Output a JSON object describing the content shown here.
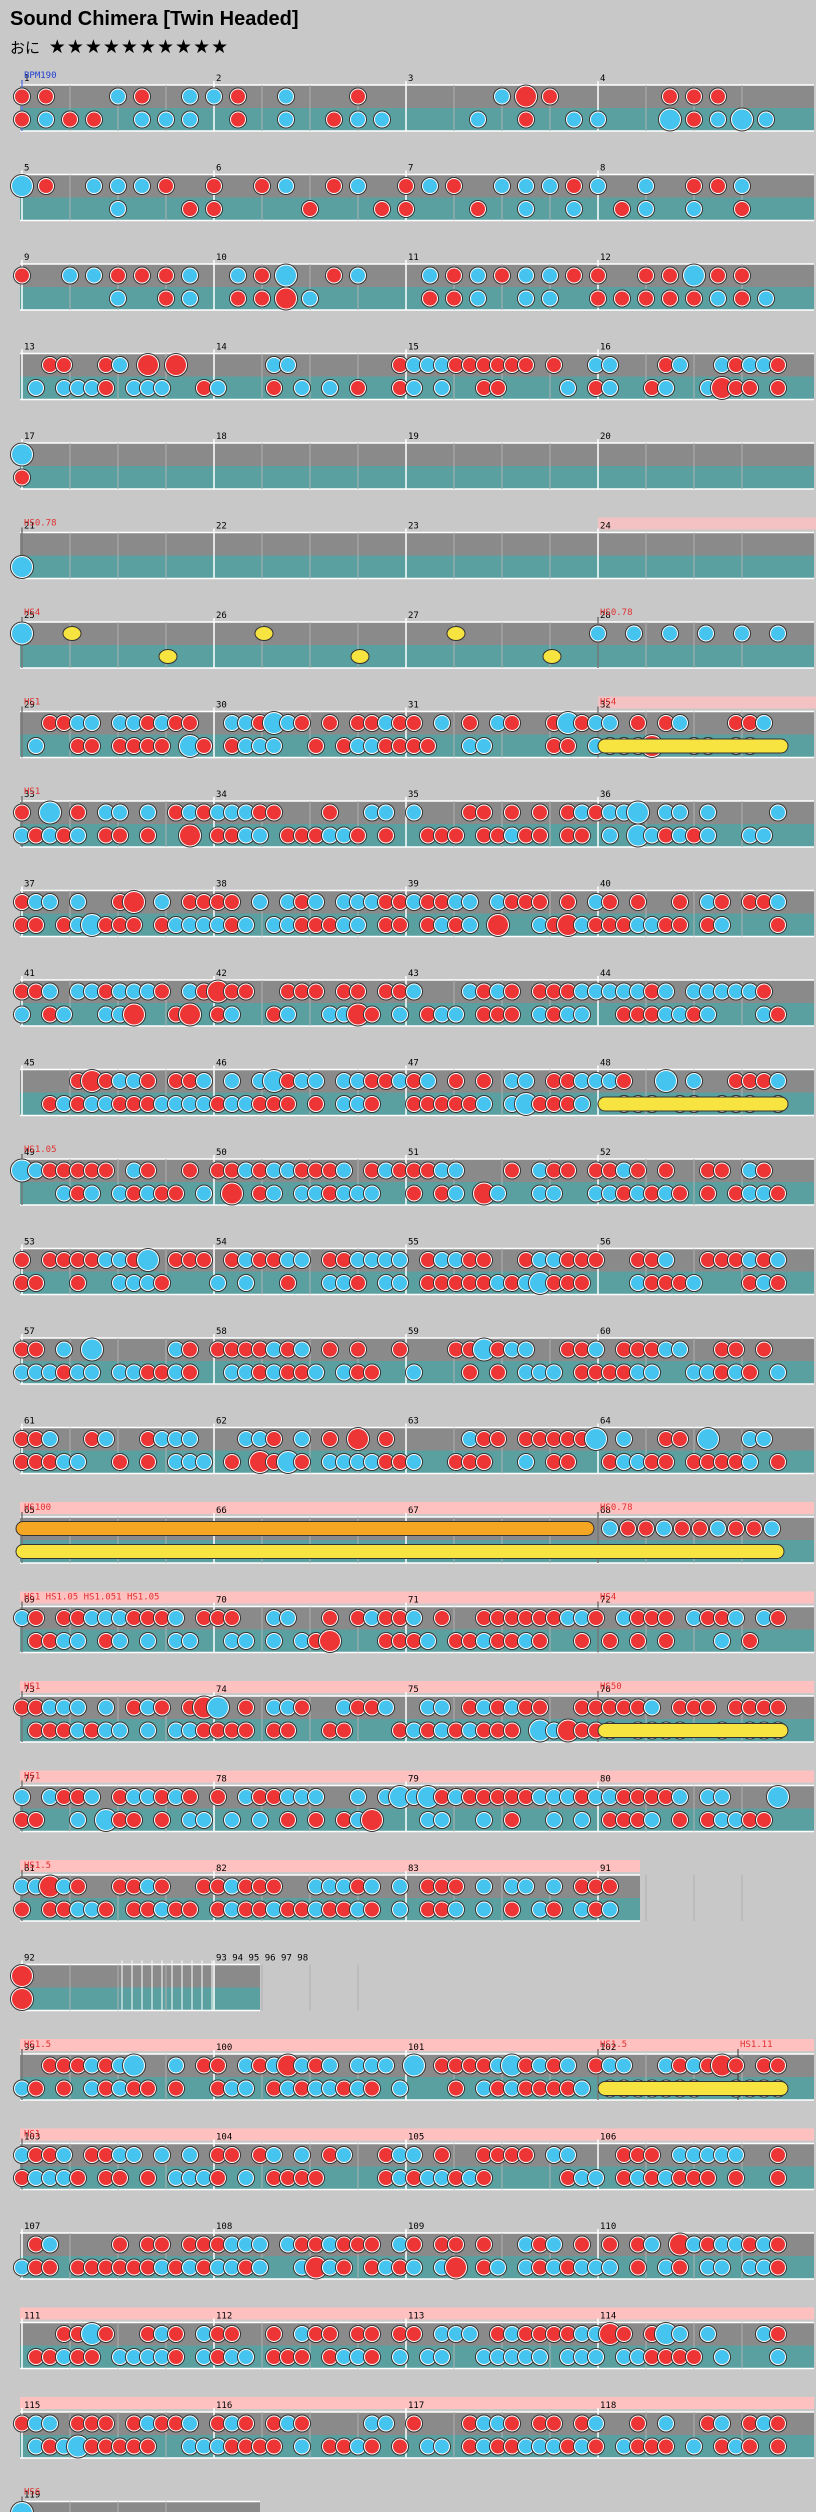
{
  "song": {
    "title": "Sound Chimera [Twin Headed]",
    "course": "おに",
    "stars": "★★★★★★★★★★"
  },
  "colors": {
    "background": "#c8c8c8",
    "lane_top": "#8a8a8a",
    "lane_bottom": "#5aa0a0",
    "don": "#ee3535",
    "ka": "#44c4ef",
    "roll": "#f8e440",
    "balloon": "#f5a623",
    "gogo": "#ffc0c0",
    "event": "#e03030",
    "bpm_marker": "#2040d0"
  },
  "rows": [
    {
      "measures": [
        "1",
        "2",
        "3",
        "4"
      ],
      "events": [
        {
          "t": "BPM190",
          "bpm": true
        }
      ],
      "pattern": "mixed"
    },
    {
      "measures": [
        "5",
        "6",
        "7",
        "8"
      ],
      "pattern": "mixed"
    },
    {
      "measures": [
        "9",
        "10",
        "11",
        "12"
      ],
      "pattern": "mixed"
    },
    {
      "measures": [
        "13",
        "14",
        "15",
        "16"
      ],
      "pattern": "run"
    },
    {
      "measures": [
        "17",
        "18",
        "19",
        "20"
      ],
      "pattern": "sparse"
    },
    {
      "measures": [
        "21",
        "22",
        "23",
        "24"
      ],
      "events": [
        {
          "t": "HS0.78"
        }
      ],
      "gogo_partial": true,
      "pattern": "single"
    },
    {
      "measures": [
        "25",
        "26",
        "27",
        "28"
      ],
      "events": [
        {
          "t": "HS4"
        },
        {
          "t": "HS0.78"
        }
      ],
      "pattern": "yellow"
    },
    {
      "measures": [
        "29",
        "30",
        "31",
        "32"
      ],
      "events": [
        {
          "t": "HS1"
        },
        {
          "t": "HS4"
        }
      ],
      "gogo_partial": true,
      "pattern": "dense",
      "roll_end": true
    },
    {
      "measures": [
        "33",
        "34",
        "35",
        "36"
      ],
      "events": [
        {
          "t": "HS1"
        }
      ],
      "pattern": "dense"
    },
    {
      "measures": [
        "37",
        "38",
        "39",
        "40"
      ],
      "pattern": "dense"
    },
    {
      "measures": [
        "41",
        "42",
        "43",
        "44"
      ],
      "pattern": "dense"
    },
    {
      "measures": [
        "45",
        "46",
        "47",
        "48"
      ],
      "pattern": "dense",
      "roll_end": true
    },
    {
      "measures": [
        "49",
        "50",
        "51",
        "52"
      ],
      "events": [
        {
          "t": "HS1.05"
        }
      ],
      "pattern": "dense"
    },
    {
      "measures": [
        "53",
        "54",
        "55",
        "56"
      ],
      "pattern": "dense"
    },
    {
      "measures": [
        "57",
        "58",
        "59",
        "60"
      ],
      "pattern": "dense"
    },
    {
      "measures": [
        "61",
        "62",
        "63",
        "64"
      ],
      "pattern": "dense"
    },
    {
      "measures": [
        "65",
        "66",
        "67",
        "68"
      ],
      "events": [
        {
          "t": "HS100"
        },
        {
          "t": "HS0.78"
        }
      ],
      "gogo": true,
      "pattern": "balloon"
    },
    {
      "measures": [
        "69",
        "70",
        "71",
        "72"
      ],
      "events": [
        {
          "t": "HS1 HS1.05 HS1.051 HS1.05"
        },
        {
          "t": "HS4"
        }
      ],
      "gogo": true,
      "pattern": "dense"
    },
    {
      "measures": [
        "73",
        "74",
        "75",
        "76"
      ],
      "events": [
        {
          "t": "HS1"
        },
        {
          "t": "HS50"
        }
      ],
      "gogo": true,
      "pattern": "dense",
      "roll_end": true
    },
    {
      "measures": [
        "77",
        "78",
        "79",
        "80"
      ],
      "events": [
        {
          "t": "HS1"
        }
      ],
      "gogo": true,
      "pattern": "dense"
    },
    {
      "measures": [
        "81",
        "82",
        "83",
        "91"
      ],
      "events": [
        {
          "t": "HS1.5"
        }
      ],
      "gogo": true,
      "pattern": "dense",
      "width": 620
    },
    {
      "measures": [
        "92",
        "93 94 95 96 97 98"
      ],
      "pattern": "stack",
      "width": 240
    },
    {
      "measures": [
        "99",
        "100",
        "101",
        "102"
      ],
      "events": [
        {
          "t": "HS1.5"
        },
        {
          "t": "HS1.5"
        },
        {
          "t": "HS1.11"
        }
      ],
      "gogo": true,
      "pattern": "dense",
      "roll_end": true
    },
    {
      "measures": [
        "103",
        "104",
        "105",
        "106"
      ],
      "events": [
        {
          "t": "HS1"
        }
      ],
      "gogo": true,
      "pattern": "dense"
    },
    {
      "measures": [
        "107",
        "108",
        "109",
        "110"
      ],
      "pattern": "dense"
    },
    {
      "measures": [
        "111",
        "112",
        "113",
        "114"
      ],
      "gogo": true,
      "pattern": "dense"
    },
    {
      "measures": [
        "115",
        "116",
        "117",
        "118"
      ],
      "gogo": true,
      "pattern": "dense"
    },
    {
      "measures": [
        "119"
      ],
      "events": [
        {
          "t": "HS6"
        }
      ],
      "pattern": "end",
      "width": 240
    }
  ]
}
